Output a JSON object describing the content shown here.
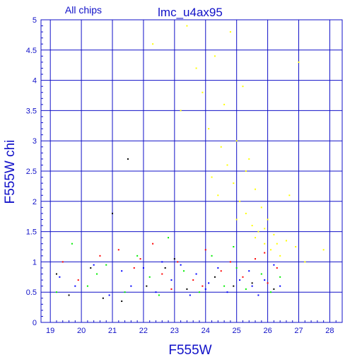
{
  "chart_data": {
    "type": "scatter",
    "title": "lmc_u4ax95",
    "subtitle": "All chips",
    "xlabel": "F555W",
    "ylabel": "F555W chi",
    "xlim": [
      18.7,
      28.4
    ],
    "ylim": [
      0,
      5
    ],
    "x_ticks": [
      "19",
      "20",
      "21",
      "22",
      "23",
      "24",
      "25",
      "26",
      "27",
      "28"
    ],
    "y_ticks": [
      "0",
      "0.5",
      "1",
      "1.5",
      "2",
      "2.5",
      "3",
      "3.5",
      "4",
      "4.5",
      "5"
    ],
    "grid": true,
    "colors": {
      "axis": "#1010c8",
      "grid": "#1010c8",
      "yellow": "#ffff00",
      "blue": "#0000ff",
      "green": "#00ee00",
      "red": "#ff0000",
      "black": "#000000"
    },
    "series": [
      {
        "color": "black",
        "points": [
          [
            19.2,
            0.8
          ],
          [
            19.6,
            0.45
          ],
          [
            20.3,
            0.9
          ],
          [
            21.0,
            1.8
          ],
          [
            21.5,
            2.7
          ],
          [
            21.3,
            0.35
          ],
          [
            22.1,
            0.6
          ],
          [
            22.7,
            0.9
          ],
          [
            23.4,
            0.55
          ],
          [
            24.3,
            0.75
          ],
          [
            24.9,
            0.6
          ],
          [
            25.5,
            0.65
          ],
          [
            26.2,
            0.55
          ],
          [
            20.7,
            0.4
          ],
          [
            23.0,
            1.05
          ]
        ]
      },
      {
        "color": "red",
        "points": [
          [
            19.4,
            1.0
          ],
          [
            19.9,
            0.7
          ],
          [
            20.6,
            1.1
          ],
          [
            21.2,
            1.2
          ],
          [
            21.7,
            0.9
          ],
          [
            22.3,
            1.3
          ],
          [
            22.6,
            0.8
          ],
          [
            23.1,
            1.0
          ],
          [
            23.6,
            0.7
          ],
          [
            24.0,
            1.2
          ],
          [
            24.5,
            0.85
          ],
          [
            24.8,
            1.0
          ],
          [
            25.2,
            0.75
          ],
          [
            25.6,
            1.05
          ],
          [
            26.0,
            0.65
          ],
          [
            26.3,
            0.9
          ],
          [
            21.9,
            1.05
          ],
          [
            23.9,
            0.6
          ],
          [
            25.9,
            1.15
          ],
          [
            22.9,
            0.55
          ]
        ]
      },
      {
        "color": "green",
        "points": [
          [
            19.2,
            0.5
          ],
          [
            19.7,
            1.3
          ],
          [
            20.2,
            0.6
          ],
          [
            20.8,
            0.95
          ],
          [
            21.4,
            0.5
          ],
          [
            21.8,
            1.1
          ],
          [
            22.2,
            0.75
          ],
          [
            22.8,
            1.4
          ],
          [
            23.3,
            0.85
          ],
          [
            23.8,
            0.5
          ],
          [
            24.2,
            1.1
          ],
          [
            24.6,
            0.6
          ],
          [
            25.0,
            0.9
          ],
          [
            25.3,
            0.55
          ],
          [
            25.8,
            0.8
          ],
          [
            26.1,
            0.5
          ],
          [
            26.4,
            0.75
          ],
          [
            22.5,
            0.45
          ],
          [
            24.9,
            1.25
          ],
          [
            20.5,
            0.8
          ]
        ]
      },
      {
        "color": "blue",
        "points": [
          [
            19.3,
            0.75
          ],
          [
            19.8,
            0.6
          ],
          [
            20.4,
            0.95
          ],
          [
            20.9,
            0.45
          ],
          [
            21.3,
            0.85
          ],
          [
            21.6,
            0.6
          ],
          [
            22.0,
            0.9
          ],
          [
            22.4,
            0.5
          ],
          [
            22.9,
            0.7
          ],
          [
            23.2,
            0.95
          ],
          [
            23.5,
            0.45
          ],
          [
            23.7,
            0.8
          ],
          [
            24.1,
            0.65
          ],
          [
            24.4,
            0.9
          ],
          [
            24.7,
            0.5
          ],
          [
            25.1,
            0.7
          ],
          [
            25.4,
            0.85
          ],
          [
            25.7,
            0.45
          ],
          [
            25.9,
            0.7
          ],
          [
            26.2,
            0.95
          ],
          [
            26.4,
            0.6
          ],
          [
            24.0,
            0.55
          ],
          [
            25.5,
            0.6
          ],
          [
            22.6,
            1.0
          ]
        ]
      },
      {
        "color": "yellow",
        "points": [
          [
            22.3,
            4.6
          ],
          [
            23.2,
            3.5
          ],
          [
            23.4,
            4.9
          ],
          [
            23.7,
            4.2
          ],
          [
            23.9,
            3.8
          ],
          [
            24.1,
            3.2
          ],
          [
            24.3,
            4.4
          ],
          [
            24.5,
            2.9
          ],
          [
            24.6,
            3.6
          ],
          [
            24.7,
            2.6
          ],
          [
            24.8,
            4.8
          ],
          [
            24.9,
            2.3
          ],
          [
            25.0,
            3.0
          ],
          [
            25.1,
            2.0
          ],
          [
            25.2,
            3.9
          ],
          [
            25.3,
            1.8
          ],
          [
            25.4,
            2.7
          ],
          [
            25.5,
            1.6
          ],
          [
            25.6,
            2.2
          ],
          [
            25.7,
            1.5
          ],
          [
            25.8,
            1.9
          ],
          [
            25.9,
            1.3
          ],
          [
            26.0,
            1.7
          ],
          [
            26.1,
            1.2
          ],
          [
            26.2,
            1.45
          ],
          [
            26.4,
            1.1
          ],
          [
            26.6,
            1.35
          ],
          [
            26.9,
            1.25
          ],
          [
            27.2,
            1.0
          ],
          [
            27.8,
            1.2
          ],
          [
            27.0,
            4.3
          ],
          [
            24.2,
            2.4
          ],
          [
            25.3,
            2.5
          ],
          [
            25.9,
            1.55
          ],
          [
            26.3,
            1.3
          ],
          [
            25.6,
            1.4
          ],
          [
            24.4,
            2.1
          ],
          [
            25.0,
            1.7
          ],
          [
            26.7,
            2.1
          ]
        ]
      }
    ]
  }
}
